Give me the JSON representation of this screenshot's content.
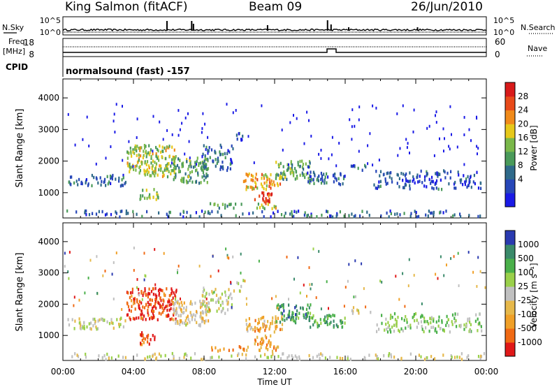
{
  "header": {
    "station": "King Salmon (fitACF)",
    "beam": "Beam 09",
    "date": "26/Jun/2010"
  },
  "aux": {
    "nsky_label": "N.Sky",
    "nsearch_label": "N.Search",
    "freq_label_1": "Freq.",
    "freq_label_2": "[MHz]",
    "nave_label": "Nave",
    "cpid_label": "CPID",
    "cpid_value": "normalsound (fast) -157",
    "noise_ticks_left": [
      "10^5",
      "10^0"
    ],
    "noise_ticks_right": [
      "10^5",
      "10^0"
    ],
    "freq_ticks_left": [
      "18",
      "8"
    ],
    "nave_ticks_right": [
      "60",
      "0"
    ]
  },
  "colors": {
    "power_scale": [
      "#1a1ae6",
      "#2747b8",
      "#2f6a8a",
      "#4a9a5a",
      "#7ab84a",
      "#e6c81a",
      "#f08a1a",
      "#e84a1a",
      "#d81a1a"
    ],
    "velocity_scale": [
      "#e01818",
      "#f06a14",
      "#f0a028",
      "#e6b84a",
      "#c0c0c0",
      "#9ad04a",
      "#4ab04a",
      "#3a8a6a",
      "#2a3ab0"
    ],
    "ground_scatter": "#c0c0c0"
  },
  "chart_data": [
    {
      "type": "heatmap",
      "name": "power",
      "ylabel": "Slant Range [km]",
      "xlabel": "Time UT",
      "x_ticks": [
        "00:00",
        "04:00",
        "08:00",
        "12:00",
        "16:00",
        "20:00",
        "00:00"
      ],
      "y_ticks": [
        "1000",
        "2000",
        "3000",
        "4000"
      ],
      "ylim": [
        200,
        4600
      ],
      "xlim_hours": [
        0,
        24
      ],
      "colorbar_label": "Power [dB]",
      "colorbar_ticks": [
        "4",
        "8",
        "12",
        "16",
        "20",
        "24",
        "28"
      ]
    },
    {
      "type": "heatmap",
      "name": "velocity",
      "ylabel": "Slant Range [km]",
      "xlabel": "Time UT",
      "x_ticks": [
        "00:00",
        "04:00",
        "08:00",
        "12:00",
        "16:00",
        "20:00",
        "00:00"
      ],
      "y_ticks": [
        "1000",
        "2000",
        "3000",
        "4000"
      ],
      "ylim": [
        200,
        4600
      ],
      "xlim_hours": [
        0,
        24
      ],
      "colorbar_label": "Velocity [m s⁻¹]",
      "colorbar_ticks": [
        "1000",
        "500",
        "100",
        "25",
        "-25",
        "-100",
        "-500",
        "-1000"
      ]
    }
  ]
}
